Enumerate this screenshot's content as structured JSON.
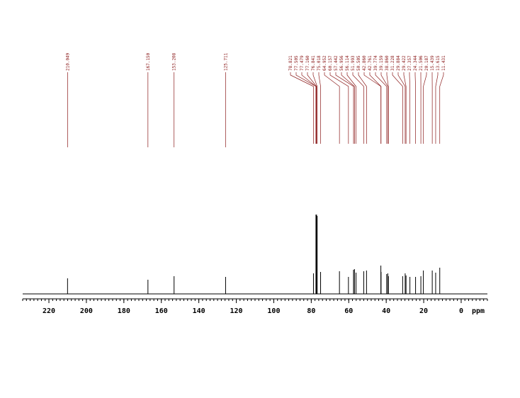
{
  "chart_data": {
    "type": "nmr",
    "values": [
      210.049,
      167.15,
      153.208,
      125.711,
      78.821,
      77.505,
      77.479,
      77.16,
      76.841,
      75.018,
      64.952,
      60.157,
      57.442,
      56.956,
      56.114,
      51.993,
      50.505,
      42.86,
      42.761,
      39.774,
      39.159,
      38.86,
      31.228,
      29.884,
      29.422,
      27.357,
      24.344,
      21.506,
      20.187,
      15.439,
      13.615,
      11.431
    ],
    "value_labels": [
      "210.049",
      "167.150",
      "153.208",
      "125.711",
      "78.821",
      "77.505",
      "77.479",
      "77.160",
      "76.841",
      "75.018",
      "64.952",
      "60.157",
      "57.442",
      "56.956",
      "56.114",
      "51.993",
      "50.505",
      "42.860",
      "42.761",
      "39.774",
      "39.159",
      "38.860",
      "31.228",
      "29.884",
      "29.422",
      "27.357",
      "24.344",
      "21.506",
      "20.187",
      "15.439",
      "13.615",
      "11.431"
    ],
    "intensities": [
      22,
      20,
      25,
      24,
      29,
      112,
      110,
      112,
      110,
      31,
      32,
      24,
      34,
      35,
      30,
      32,
      33,
      40,
      31,
      28,
      29,
      25,
      25,
      29,
      26,
      24,
      24,
      25,
      33,
      33,
      30,
      37
    ],
    "color": "#000000",
    "label_color": "#8b1a1a",
    "xlim": [
      234,
      -14
    ],
    "xticks": [
      220,
      200,
      180,
      160,
      140,
      120,
      100,
      80,
      60,
      40,
      20,
      0
    ],
    "x_label": "ppm"
  }
}
